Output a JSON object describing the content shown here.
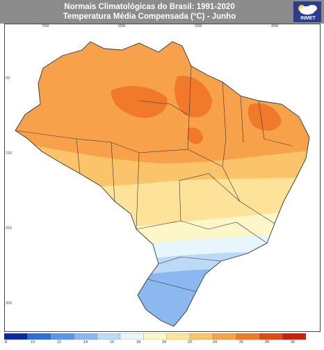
{
  "header": {
    "title_line1": "Normais Climatológicas do Brasil: 1991-2020",
    "title_line2": "Temperatura Média Compensada (°C) - Junho",
    "logo_text": "INMET"
  },
  "map": {
    "lon_labels": [
      "70W",
      "60W",
      "50W",
      "40W"
    ],
    "lat_labels": [
      "0S",
      "10S",
      "20S",
      "30S"
    ]
  },
  "legend": {
    "ticks": [
      "8",
      "10",
      "12",
      "14",
      "16",
      "18",
      "20",
      "22",
      "24",
      "26",
      "28",
      "30"
    ],
    "colors": [
      "#0a2a9e",
      "#2f6fd8",
      "#5a95e6",
      "#8cb8f0",
      "#bcd9f6",
      "#e6f6fc",
      "#fdf6c8",
      "#fde39a",
      "#fbc36a",
      "#f7a24a",
      "#f07a2a",
      "#e04a15",
      "#c8200a"
    ]
  }
}
